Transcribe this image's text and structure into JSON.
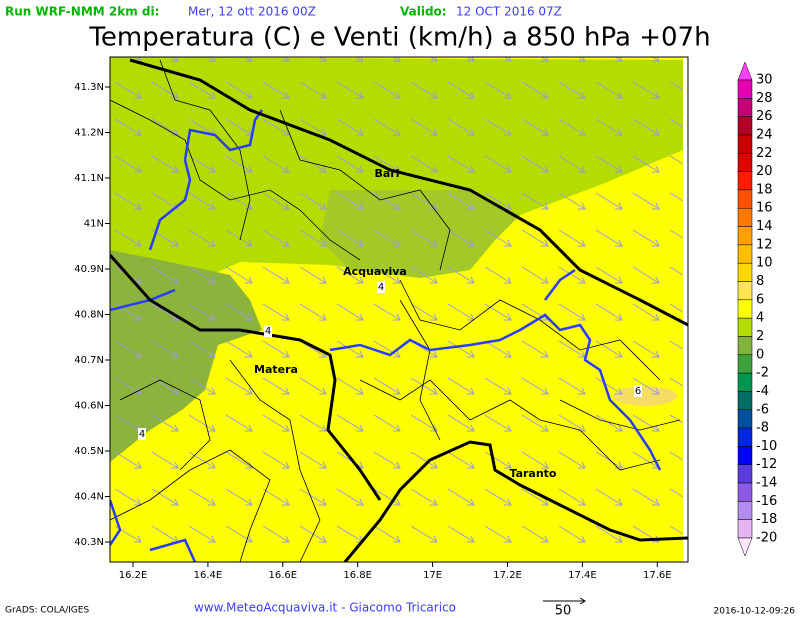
{
  "header": {
    "run_label": "Run WRF-NMM 2km di:",
    "run_date": "Mer, 12 ott 2016 00Z",
    "valid_label": "Valido:",
    "valid_date": "12 OCT 2016 07Z"
  },
  "title": "Temperatura (C) e Venti (km/h) a 850 hPa +07h",
  "map": {
    "lat_labels": [
      "41.3N",
      "41.2N",
      "41.1N",
      "41N",
      "40.9N",
      "40.8N",
      "40.7N",
      "40.6N",
      "40.5N",
      "40.4N",
      "40.3N"
    ],
    "lon_labels": [
      "16.2E",
      "16.4E",
      "16.6E",
      "16.8E",
      "17E",
      "17.2E",
      "17.4E",
      "17.6E"
    ],
    "places": [
      "Bari",
      "Acquaviva",
      "Matera",
      "Taranto"
    ],
    "contour_labels": [
      "4",
      "4",
      "6",
      "4"
    ]
  },
  "colorbar": {
    "labels": [
      "30",
      "28",
      "26",
      "24",
      "22",
      "20",
      "18",
      "16",
      "14",
      "12",
      "10",
      "8",
      "6",
      "4",
      "2",
      "0",
      "-2",
      "-4",
      "-6",
      "-8",
      "-10",
      "-12",
      "-14",
      "-16",
      "-18",
      "-20"
    ],
    "colors": [
      "#ff40ff",
      "#e600b4",
      "#c80078",
      "#b40028",
      "#c80000",
      "#e10000",
      "#ff1e00",
      "#ff5000",
      "#ff7800",
      "#ffa000",
      "#ffbe00",
      "#ffd700",
      "#ffe650",
      "#ffff00",
      "#b4dc00",
      "#82b43c",
      "#3ca03c",
      "#009650",
      "#006e64",
      "#0050a0",
      "#0028dc",
      "#0000ff",
      "#5a3cdc",
      "#8c5ae6",
      "#b48cf0",
      "#e6b4f0",
      "#ffe6ff"
    ]
  },
  "footer": {
    "credit": "GrADS: COLA/IGES",
    "source": "www.MeteoAcquaviva.it - Giacomo Tricarico",
    "vector_scale": "50",
    "timestamp": "2016-10-12-09:26"
  }
}
